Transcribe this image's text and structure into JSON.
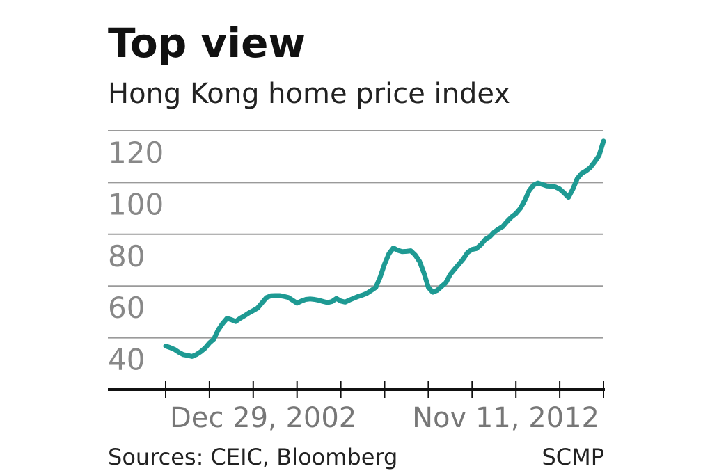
{
  "chart_data": {
    "type": "line",
    "title": "Top view",
    "subtitle": "Hong Kong home price index",
    "source": "Sources: CEIC, Bloomberg",
    "credit": "SCMP",
    "categories": [
      "Dec 29, 2002",
      null,
      null,
      null,
      null,
      null,
      null,
      null,
      null,
      null,
      null,
      null,
      null,
      null,
      null,
      null,
      null,
      null,
      null,
      null,
      null,
      null,
      null,
      null,
      null,
      null,
      null,
      null,
      null,
      null,
      null,
      null,
      null,
      null,
      null,
      null,
      null,
      null,
      null,
      null,
      null,
      null,
      null,
      null,
      null,
      null,
      null,
      null,
      null,
      null,
      null,
      null,
      null,
      null,
      null,
      null,
      null,
      null,
      null,
      null,
      null,
      null,
      null,
      null,
      null,
      null,
      null,
      null,
      null,
      null,
      null,
      null,
      null,
      null,
      null,
      null,
      null,
      null,
      null,
      null,
      null,
      null,
      null,
      null,
      null,
      null,
      null,
      null,
      null,
      null,
      null,
      null,
      null,
      null,
      null,
      null,
      null,
      null,
      null,
      null,
      "Nov 11, 2012"
    ],
    "series": [
      {
        "color": "#1e9a93",
        "values": [
          36.8,
          36.2,
          35.5,
          34.4,
          33.5,
          33.2,
          32.8,
          33.5,
          34.6,
          36,
          38,
          39.5,
          43,
          45.5,
          47.5,
          47,
          46.3,
          47.5,
          48.5,
          49.6,
          50.5,
          51.5,
          53.5,
          55.5,
          56.2,
          56.3,
          56.3,
          56,
          55.6,
          54.5,
          53.4,
          54.2,
          54.8,
          55,
          54.8,
          54.5,
          54,
          53.6,
          54,
          55.2,
          54.2,
          53.8,
          54.6,
          55.3,
          56,
          56.5,
          57.2,
          58.3,
          59.5,
          63.5,
          68.5,
          72.5,
          74.7,
          73.8,
          73.3,
          73.4,
          73.6,
          72,
          69.5,
          65,
          59.5,
          57.6,
          58.3,
          59.8,
          61.3,
          64.5,
          66.5,
          68.5,
          70.5,
          73,
          74.1,
          74.5,
          76,
          78,
          79,
          80.8,
          82,
          83,
          85,
          86.7,
          88,
          90,
          93,
          96.8,
          99,
          99.8,
          99.3,
          98.7,
          98.6,
          98.3,
          97.5,
          96,
          94.3,
          97.5,
          101.5,
          103.5,
          104.5,
          105.8,
          108,
          110.5,
          116
        ]
      }
    ],
    "ylim": [
      20,
      120
    ],
    "yticks": [
      40,
      60,
      80,
      100,
      120
    ],
    "grid": true
  }
}
